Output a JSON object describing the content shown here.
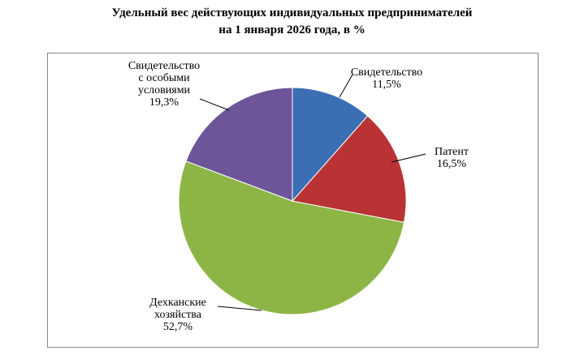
{
  "chart_data": {
    "type": "pie",
    "title": "Удельный вес действующих индивидуальных предпринимателей\nна 1 января 2026 года, в %",
    "categories": [
      "Свидетельство",
      "Патент",
      "Дехканские\nхозяйства",
      "Свидетельство\nс особыми\nусловиями"
    ],
    "values": [
      11.5,
      16.5,
      52.7,
      19.3
    ],
    "value_labels": [
      "11,5%",
      "16,5%",
      "52,7%",
      "19,3%"
    ],
    "colors": [
      "#3b6eb2",
      "#b93334",
      "#8db545",
      "#6e559a"
    ]
  }
}
